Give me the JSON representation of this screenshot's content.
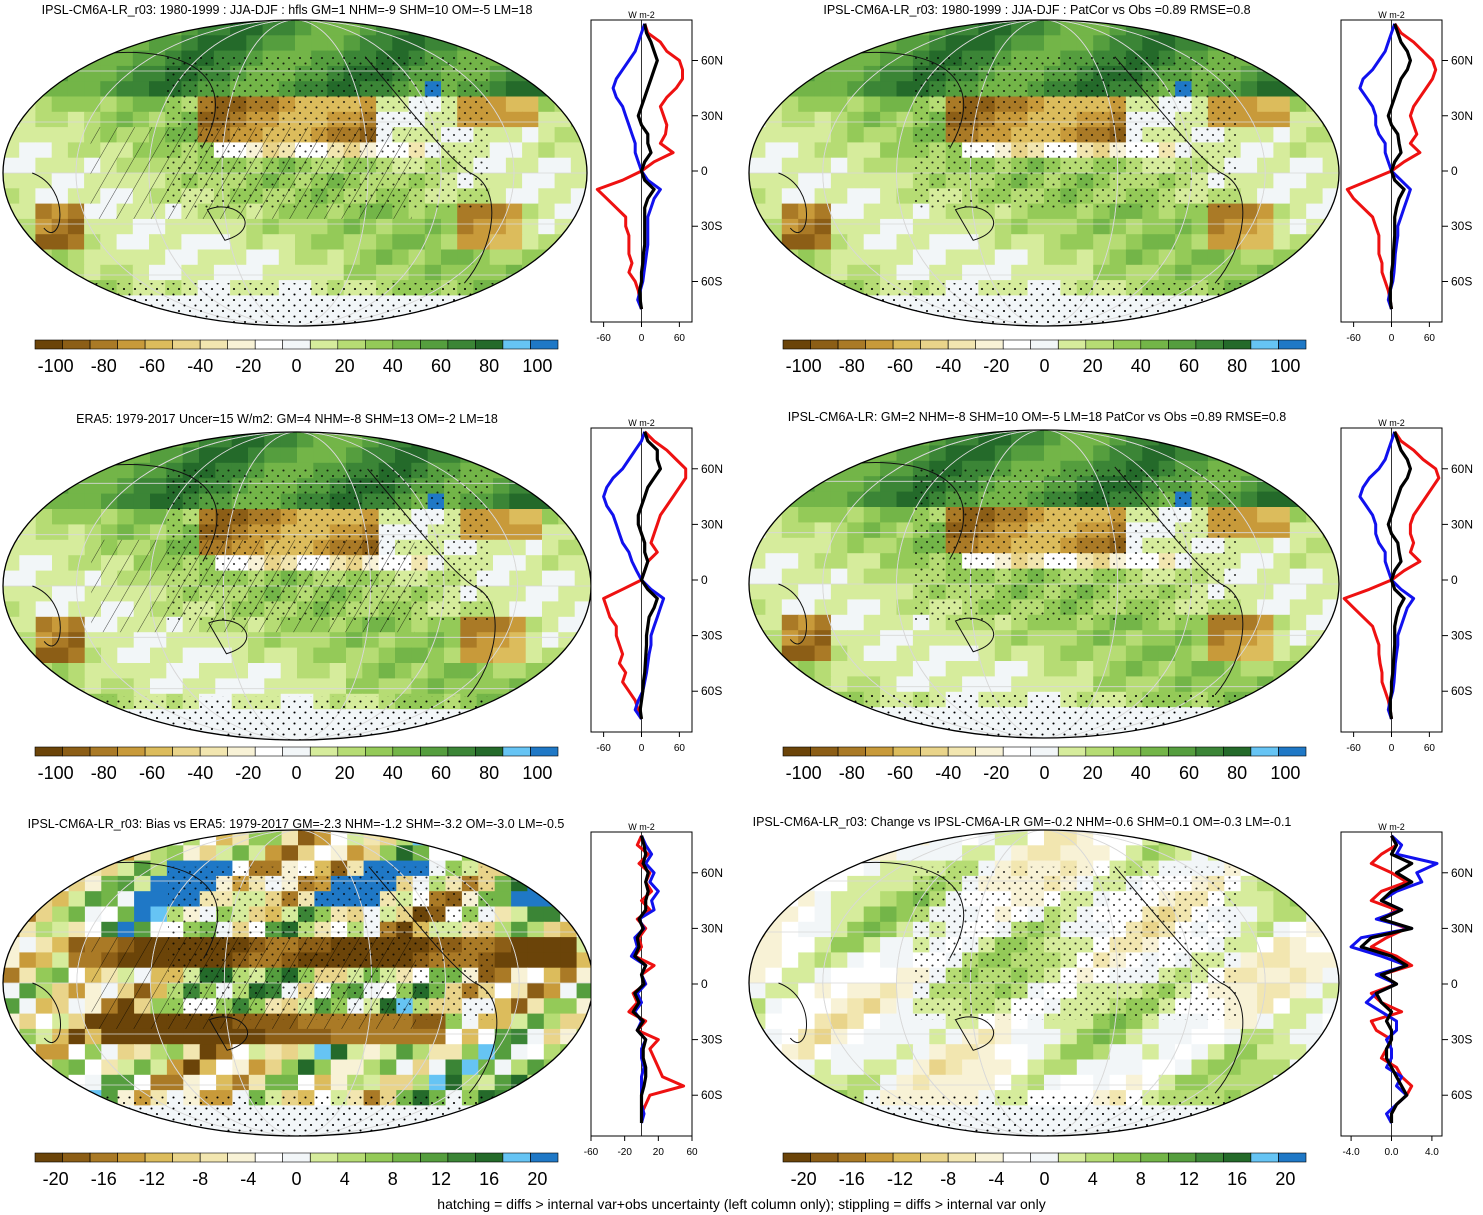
{
  "footnote": "hatching = diffs > internal var+obs uncertainty (left column only); stippling = diffs > internal var only",
  "colors": {
    "scale": [
      "#6b4409",
      "#8c5e16",
      "#aa7a26",
      "#c89a3a",
      "#dcbc5c",
      "#e9d48a",
      "#f2e6b0",
      "#f8f2d6",
      "#ffffff",
      "#f2f6f8",
      "#d6ec9c",
      "#b6dc74",
      "#94ca58",
      "#73b548",
      "#559e3e",
      "#3b8536",
      "#246a2a",
      "#66c4f4",
      "#1f78c6"
    ],
    "profile_red": "#ee1111",
    "profile_blue": "#1111ee",
    "profile_black": "#000000",
    "coast": "#111111"
  },
  "chart_data": [
    {
      "type": "heatmap",
      "title": "IPSL-CM6A-LR_r03: 1980-1999 : JJA-DJF : hfls GM=1 NHM=-9 SHM=10 OM=-5 LM=18",
      "colorbar_labels": [
        "-100",
        "-80",
        "-60",
        "-40",
        "-20",
        "0",
        "20",
        "40",
        "60",
        "80",
        "100"
      ],
      "profile": {
        "unit": "W m-2",
        "y_labels": [
          "60N",
          "30N",
          "0",
          "30S",
          "60S"
        ],
        "x_ticks": [
          "-60",
          "0",
          "60"
        ],
        "xlim": [
          -80,
          80
        ],
        "lat": [
          80,
          75,
          70,
          65,
          60,
          55,
          50,
          45,
          40,
          35,
          30,
          25,
          20,
          15,
          10,
          5,
          0,
          -5,
          -10,
          -15,
          -20,
          -25,
          -30,
          -35,
          -40,
          -45,
          -50,
          -55,
          -60,
          -65,
          -70,
          -75
        ],
        "red": [
          5,
          10,
          30,
          40,
          60,
          65,
          65,
          55,
          40,
          30,
          35,
          40,
          38,
          30,
          50,
          20,
          0,
          -30,
          -70,
          -55,
          -40,
          -25,
          -25,
          -20,
          -20,
          -20,
          -15,
          -20,
          -10,
          -5,
          -3,
          0
        ],
        "blue": [
          5,
          0,
          -5,
          -10,
          -20,
          -30,
          -40,
          -45,
          -40,
          -30,
          -25,
          -20,
          -15,
          -10,
          -10,
          -5,
          0,
          10,
          30,
          20,
          15,
          10,
          10,
          10,
          10,
          8,
          6,
          4,
          2,
          -2,
          -6,
          0
        ],
        "black": [
          5,
          8,
          15,
          20,
          25,
          20,
          15,
          10,
          5,
          0,
          -5,
          0,
          10,
          10,
          15,
          5,
          0,
          5,
          20,
          10,
          5,
          5,
          5,
          5,
          5,
          3,
          2,
          0,
          0,
          -3,
          -2,
          0
        ]
      }
    },
    {
      "type": "heatmap",
      "title": "IPSL-CM6A-LR_r03: 1980-1999 : JJA-DJF : PatCor vs Obs =0.89 RMSE=0.8",
      "colorbar_labels": [
        "-100",
        "-80",
        "-60",
        "-40",
        "-20",
        "0",
        "20",
        "40",
        "60",
        "80",
        "100"
      ],
      "profile": {
        "unit": "W m-2",
        "y_labels": [
          "60N",
          "30N",
          "0",
          "30S",
          "60S"
        ],
        "x_ticks": [
          "-60",
          "0",
          "60"
        ],
        "xlim": [
          -80,
          80
        ],
        "lat": [
          80,
          75,
          70,
          65,
          60,
          55,
          50,
          45,
          40,
          35,
          30,
          25,
          20,
          15,
          10,
          5,
          0,
          -5,
          -10,
          -15,
          -20,
          -25,
          -30,
          -35,
          -40,
          -45,
          -50,
          -55,
          -60,
          -65,
          -70,
          -75
        ],
        "red": [
          5,
          15,
          35,
          50,
          65,
          70,
          65,
          55,
          45,
          35,
          30,
          35,
          40,
          30,
          45,
          20,
          0,
          -35,
          -70,
          -60,
          -45,
          -30,
          -25,
          -20,
          -20,
          -20,
          -15,
          -15,
          -10,
          -5,
          -2,
          0
        ],
        "blue": [
          5,
          0,
          -5,
          -10,
          -20,
          -30,
          -45,
          -50,
          -40,
          -30,
          -25,
          -25,
          -20,
          -10,
          -10,
          -5,
          0,
          15,
          30,
          25,
          20,
          15,
          10,
          10,
          8,
          6,
          5,
          4,
          2,
          -2,
          -5,
          0
        ],
        "black": [
          5,
          10,
          15,
          25,
          30,
          25,
          15,
          10,
          5,
          0,
          -5,
          0,
          10,
          12,
          15,
          5,
          0,
          5,
          20,
          12,
          8,
          5,
          5,
          5,
          4,
          3,
          2,
          0,
          0,
          -2,
          -2,
          0
        ]
      }
    },
    {
      "type": "heatmap",
      "title": "ERA5: 1979-2017 Uncer=15 W/m2: GM=4 NHM=-8 SHM=13 OM=-2 LM=18",
      "colorbar_labels": [
        "-100",
        "-80",
        "-60",
        "-40",
        "-20",
        "0",
        "20",
        "40",
        "60",
        "80",
        "100"
      ],
      "profile": {
        "unit": "W m-2",
        "y_labels": [
          "60N",
          "30N",
          "0",
          "30S",
          "60S"
        ],
        "x_ticks": [
          "-60",
          "0",
          "60"
        ],
        "xlim": [
          -80,
          80
        ],
        "lat": [
          80,
          75,
          70,
          65,
          60,
          55,
          50,
          45,
          40,
          35,
          30,
          25,
          20,
          15,
          10,
          5,
          0,
          -5,
          -10,
          -15,
          -20,
          -25,
          -30,
          -35,
          -40,
          -45,
          -50,
          -55,
          -60,
          -65,
          -70,
          -75
        ],
        "red": [
          5,
          20,
          40,
          55,
          70,
          70,
          60,
          50,
          40,
          30,
          25,
          20,
          15,
          25,
          10,
          5,
          0,
          -30,
          -60,
          -55,
          -50,
          -40,
          -40,
          -35,
          -30,
          -35,
          -25,
          -30,
          -20,
          -10,
          -5,
          0
        ],
        "blue": [
          5,
          0,
          -10,
          -20,
          -30,
          -45,
          -55,
          -60,
          -55,
          -45,
          -40,
          -35,
          -30,
          -20,
          -15,
          -8,
          0,
          15,
          35,
          30,
          25,
          20,
          15,
          15,
          12,
          10,
          8,
          5,
          2,
          -5,
          -10,
          0
        ],
        "black": [
          5,
          10,
          25,
          25,
          30,
          20,
          10,
          5,
          0,
          -5,
          -5,
          0,
          5,
          5,
          10,
          5,
          0,
          10,
          25,
          20,
          12,
          10,
          8,
          8,
          7,
          6,
          5,
          3,
          2,
          0,
          -2,
          0
        ]
      }
    },
    {
      "type": "heatmap",
      "title": "IPSL-CM6A-LR: GM=2 NHM=-8 SHM=10 OM=-5 LM=18 PatCor vs Obs =0.89 RMSE=0.8",
      "colorbar_labels": [
        "-100",
        "-80",
        "-60",
        "-40",
        "-20",
        "0",
        "20",
        "40",
        "60",
        "80",
        "100"
      ],
      "profile": {
        "unit": "W m-2",
        "y_labels": [
          "60N",
          "30N",
          "0",
          "30S",
          "60S"
        ],
        "x_ticks": [
          "-60",
          "0",
          "60"
        ],
        "xlim": [
          -80,
          80
        ],
        "lat": [
          80,
          75,
          70,
          65,
          60,
          55,
          50,
          45,
          40,
          35,
          30,
          25,
          20,
          15,
          10,
          5,
          0,
          -5,
          -10,
          -15,
          -20,
          -25,
          -30,
          -35,
          -40,
          -45,
          -50,
          -55,
          -60,
          -65,
          -70,
          -75
        ],
        "red": [
          5,
          15,
          35,
          50,
          70,
          75,
          65,
          55,
          45,
          35,
          30,
          30,
          35,
          30,
          45,
          20,
          0,
          -35,
          -75,
          -60,
          -45,
          -30,
          -25,
          -20,
          -20,
          -18,
          -15,
          -15,
          -10,
          -5,
          -2,
          0
        ],
        "blue": [
          5,
          0,
          -5,
          -10,
          -20,
          -35,
          -45,
          -50,
          -40,
          -30,
          -25,
          -25,
          -20,
          -10,
          -10,
          -5,
          0,
          15,
          35,
          25,
          20,
          15,
          10,
          10,
          8,
          6,
          5,
          4,
          2,
          -2,
          -5,
          0
        ],
        "black": [
          5,
          10,
          15,
          25,
          30,
          25,
          15,
          10,
          5,
          0,
          -5,
          0,
          10,
          12,
          15,
          5,
          0,
          5,
          20,
          12,
          8,
          5,
          5,
          5,
          4,
          3,
          2,
          0,
          0,
          -2,
          -2,
          0
        ]
      }
    },
    {
      "type": "heatmap",
      "title": "IPSL-CM6A-LR_r03: Bias vs ERA5: 1979-2017 GM=-2.3 NHM=-1.2 SHM=-3.2 OM=-3.0 LM=-0.5",
      "colorbar_labels": [
        "-20",
        "-16",
        "-12",
        "-8",
        "-4",
        "0",
        "4",
        "8",
        "12",
        "16",
        "20"
      ],
      "profile": {
        "unit": "W m-2",
        "y_labels": [
          "60N",
          "30N",
          "0",
          "30S",
          "60S"
        ],
        "x_ticks": [
          "-60",
          "-20",
          "20",
          "60"
        ],
        "xlim": [
          -60,
          60
        ],
        "lat": [
          80,
          75,
          70,
          65,
          60,
          55,
          50,
          45,
          40,
          35,
          30,
          25,
          20,
          15,
          10,
          5,
          0,
          -5,
          -10,
          -15,
          -20,
          -25,
          -30,
          -35,
          -40,
          -45,
          -50,
          -55,
          -60,
          -65,
          -70,
          -75
        ],
        "red": [
          0,
          -5,
          8,
          -3,
          10,
          5,
          12,
          0,
          10,
          -5,
          5,
          -3,
          0,
          -8,
          15,
          0,
          5,
          -10,
          -5,
          -15,
          5,
          -5,
          20,
          10,
          15,
          20,
          25,
          50,
          10,
          5,
          0,
          0
        ],
        "blue": [
          0,
          5,
          12,
          5,
          15,
          10,
          20,
          12,
          15,
          -3,
          3,
          -8,
          -5,
          -12,
          5,
          0,
          5,
          -5,
          0,
          -8,
          0,
          -5,
          5,
          0,
          0,
          3,
          0,
          0,
          0,
          0,
          3,
          0
        ],
        "black": [
          0,
          3,
          5,
          2,
          8,
          5,
          8,
          5,
          5,
          -3,
          2,
          -5,
          -3,
          -8,
          5,
          0,
          3,
          -8,
          -3,
          -10,
          2,
          -5,
          5,
          2,
          2,
          5,
          5,
          3,
          0,
          0,
          0,
          0
        ]
      }
    },
    {
      "type": "heatmap",
      "title": "IPSL-CM6A-LR_r03: Change vs IPSL-CM6A-LR GM=-0.2 NHM=-0.6 SHM=0.1 OM=-0.3 LM=-0.1",
      "colorbar_labels": [
        "-20",
        "-16",
        "-12",
        "-8",
        "-4",
        "0",
        "4",
        "8",
        "12",
        "16",
        "20"
      ],
      "profile": {
        "unit": "W m-2",
        "y_labels": [
          "60N",
          "30N",
          "0",
          "30S",
          "60S"
        ],
        "x_ticks": [
          "-4.0",
          "0.0",
          "4.0"
        ],
        "xlim": [
          -5,
          5
        ],
        "lat": [
          80,
          75,
          70,
          65,
          60,
          55,
          50,
          45,
          40,
          35,
          30,
          25,
          20,
          15,
          10,
          5,
          0,
          -5,
          -10,
          -15,
          -20,
          -25,
          -30,
          -35,
          -40,
          -45,
          -50,
          -55,
          -60,
          -65,
          -70,
          -75
        ],
        "red": [
          0,
          0.5,
          -1,
          -2,
          0,
          1.5,
          -1,
          -2,
          0.5,
          -1,
          1.5,
          -0.5,
          -2,
          0.5,
          2,
          -1,
          0.5,
          -2,
          -1,
          1,
          -2,
          -1.5,
          0,
          -0.5,
          -1,
          0.5,
          1,
          2,
          1.5,
          0.5,
          0,
          0
        ],
        "blue": [
          0,
          1,
          0.5,
          4.5,
          2.5,
          3,
          0.5,
          -1,
          1,
          -1.5,
          2,
          -3,
          -4,
          -1,
          1.5,
          -1.5,
          0.5,
          -1.5,
          -2.5,
          -1,
          0.5,
          0.5,
          -0.5,
          0,
          0,
          -0.5,
          1,
          0.5,
          1.5,
          0.5,
          -0.5,
          0
        ],
        "black": [
          0,
          0.5,
          0,
          2,
          0.5,
          2,
          0,
          -1,
          1,
          -1,
          2,
          -2,
          -3,
          0,
          1.5,
          -1,
          0.5,
          -1.5,
          -1,
          0,
          -0.5,
          0,
          0,
          -0.5,
          -0.5,
          0,
          0.5,
          1,
          1.5,
          0.5,
          0,
          0
        ]
      }
    }
  ]
}
